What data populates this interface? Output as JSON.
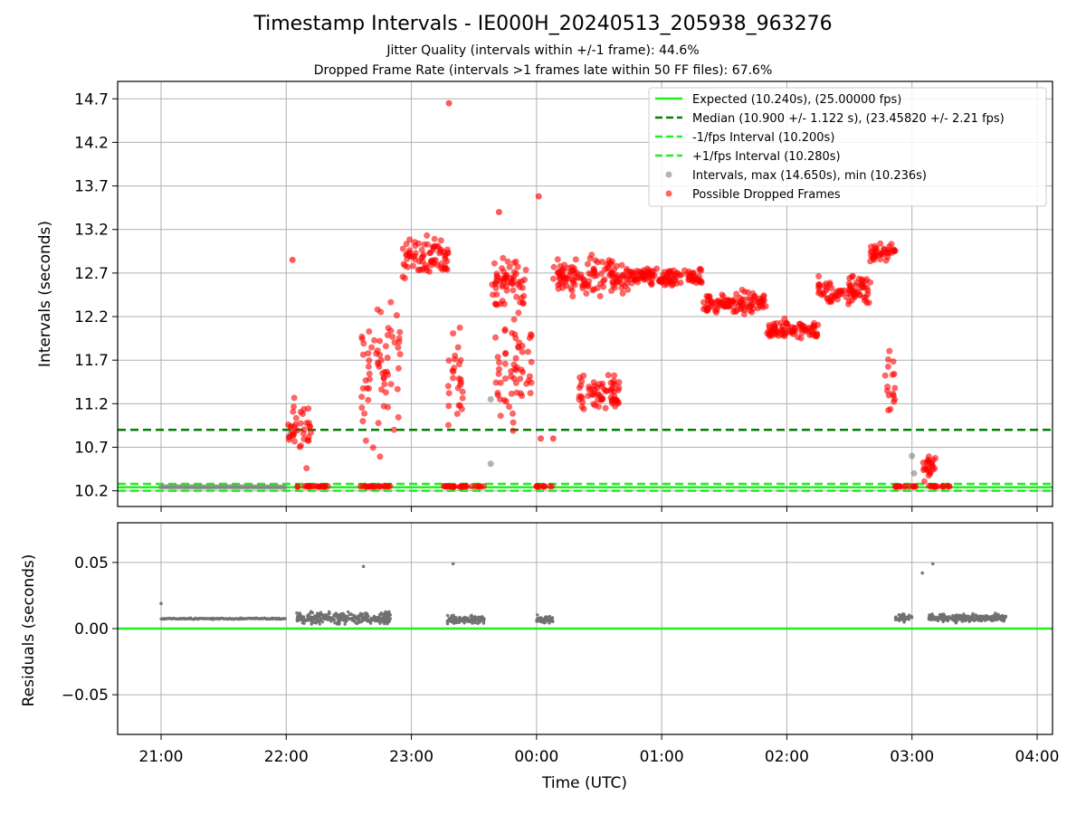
{
  "figure": {
    "title": "Timestamp Intervals - IE000H_20240513_205938_963276",
    "subtitle_jitter": "Jitter Quality (intervals within +/-1 frame): 44.6%",
    "subtitle_dropped": "Dropped Frame Rate (intervals >1 frames late within 50 FF files): 67.6%"
  },
  "colors": {
    "expected": "#22ee22",
    "median": "#008000",
    "fps_band": "#22ee22",
    "intervals": "#808080",
    "dropped": "#ff0000",
    "residuals": "#707070",
    "grid": "#b0b0b0"
  },
  "chart_data": [
    {
      "type": "scatter",
      "ylabel": "Intervals (seconds)",
      "xlabel": "",
      "x_range_hours": [
        20.66,
        28.12
      ],
      "ylim": [
        10.02,
        14.9
      ],
      "y_ticks": [
        "10.2",
        "10.7",
        "11.2",
        "11.7",
        "12.2",
        "12.7",
        "13.2",
        "13.7",
        "14.2",
        "14.7"
      ],
      "grid": true,
      "legend_position": "top-right",
      "legend": [
        "Expected (10.240s), (25.00000 fps)",
        "Median (10.900 +/- 1.122 s), (23.45820 +/- 2.21 fps)",
        "-1/fps Interval (10.200s)",
        "+1/fps Interval (10.280s)",
        "Intervals, max (14.650s), min (10.236s)",
        "Possible Dropped Frames"
      ],
      "reference_lines": {
        "expected": 10.24,
        "median": 10.9,
        "minus_fps": 10.2,
        "plus_fps": 10.28
      },
      "series": [
        {
          "name": "Intervals, max (14.650s), min (10.236s)",
          "segments": [
            {
              "from": "21:00",
              "to": "22:00",
              "mean": 10.245,
              "spread": 0.004,
              "step_minutes": 1.1
            }
          ],
          "extra_points": [
            [
              "22:02",
              10.85
            ],
            [
              "23:38",
              10.51
            ],
            [
              "23:38",
              11.25
            ],
            [
              "03:00",
              10.6
            ],
            [
              "03:01",
              10.4
            ]
          ]
        },
        {
          "name": "Possible Dropped Frames",
          "baseline_clusters": [
            {
              "from": "22:05",
              "to": "22:20",
              "value": 10.25
            },
            {
              "from": "22:35",
              "to": "22:50",
              "value": 10.25
            },
            {
              "from": "23:15",
              "to": "23:35",
              "value": 10.25
            },
            {
              "from": "00:00",
              "to": "00:08",
              "value": 10.25
            },
            {
              "from": "02:52",
              "to": "03:03",
              "value": 10.25
            },
            {
              "from": "03:08",
              "to": "03:18",
              "value": 10.25
            }
          ],
          "scatter_clusters": [
            {
              "from": "22:01",
              "to": "22:12",
              "mean": 10.9,
              "spread": 0.55
            },
            {
              "from": "22:36",
              "to": "22:55",
              "mean": 11.6,
              "spread": 1.2
            },
            {
              "from": "22:55",
              "to": "23:18",
              "mean": 12.9,
              "spread": 0.3
            },
            {
              "from": "23:17",
              "to": "23:25",
              "mean": 11.5,
              "spread": 0.9
            },
            {
              "from": "23:38",
              "to": "23:55",
              "mean": 12.6,
              "spread": 0.35
            },
            {
              "from": "23:40",
              "to": "23:58",
              "mean": 11.6,
              "spread": 1.0
            },
            {
              "from": "00:08",
              "to": "00:45",
              "mean": 12.65,
              "spread": 0.3
            },
            {
              "from": "00:20",
              "to": "00:40",
              "mean": 11.3,
              "spread": 0.3
            },
            {
              "from": "00:45",
              "to": "01:20",
              "mean": 12.65,
              "spread": 0.15
            },
            {
              "from": "01:20",
              "to": "01:50",
              "mean": 12.35,
              "spread": 0.18
            },
            {
              "from": "01:50",
              "to": "02:15",
              "mean": 12.05,
              "spread": 0.15
            },
            {
              "from": "02:15",
              "to": "02:40",
              "mean": 12.5,
              "spread": 0.22
            },
            {
              "from": "02:40",
              "to": "02:52",
              "mean": 12.95,
              "spread": 0.2
            },
            {
              "from": "02:47",
              "to": "02:52",
              "mean": 11.5,
              "spread": 0.7
            },
            {
              "from": "03:05",
              "to": "03:12",
              "mean": 10.45,
              "spread": 0.2
            }
          ],
          "extra_points": [
            [
              "22:03",
              12.85
            ],
            [
              "23:18",
              14.65
            ],
            [
              "00:01",
              13.58
            ],
            [
              "00:02",
              10.8
            ],
            [
              "00:08",
              10.8
            ],
            [
              "23:42",
              13.4
            ]
          ]
        }
      ]
    },
    {
      "type": "scatter",
      "ylabel": "Residuals (seconds)",
      "xlabel": "Time (UTC)",
      "ylim": [
        -0.08,
        0.08
      ],
      "y_ticks": [
        "0.05",
        "0.00",
        "−0.05"
      ],
      "x_ticks": [
        "21:00",
        "22:00",
        "23:00",
        "00:00",
        "01:00",
        "02:00",
        "03:00",
        "04:00"
      ],
      "grid": true,
      "reference_line": 0.0,
      "series": [
        {
          "name": "Residuals",
          "clusters": [
            {
              "from": "21:00",
              "to": "22:00",
              "mean": 0.0075,
              "spread": 0.0008,
              "dense": true
            },
            {
              "from": "22:05",
              "to": "22:50",
              "mean": 0.008,
              "spread": 0.006
            },
            {
              "from": "23:17",
              "to": "23:35",
              "mean": 0.007,
              "spread": 0.004
            },
            {
              "from": "00:00",
              "to": "00:08",
              "mean": 0.007,
              "spread": 0.004
            },
            {
              "from": "02:52",
              "to": "03:00",
              "mean": 0.008,
              "spread": 0.004
            },
            {
              "from": "03:08",
              "to": "03:45",
              "mean": 0.008,
              "spread": 0.004
            }
          ],
          "extra_points": [
            [
              "21:00",
              0.019
            ],
            [
              "22:37",
              0.047
            ],
            [
              "23:20",
              0.049
            ],
            [
              "03:05",
              0.042
            ],
            [
              "03:10",
              0.049
            ]
          ]
        }
      ]
    }
  ]
}
